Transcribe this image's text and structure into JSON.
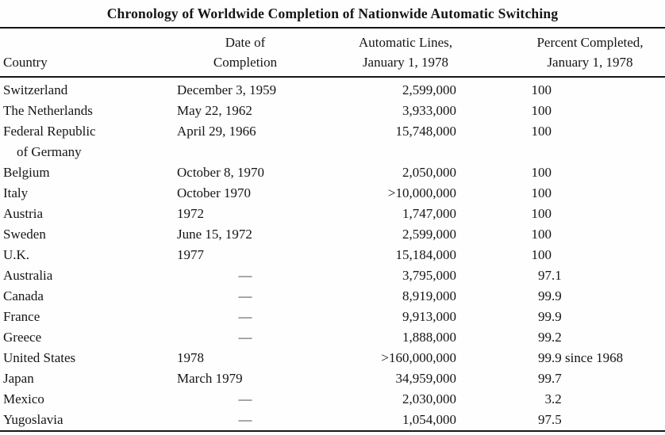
{
  "document": {
    "title": "Chronology of Worldwide Completion of Nationwide Automatic Switching"
  },
  "table": {
    "columns": [
      {
        "id": "country",
        "label": "Country"
      },
      {
        "id": "date",
        "label": "Date of\nCompletion"
      },
      {
        "id": "lines",
        "label": "Automatic Lines,\nJanuary 1, 1978"
      },
      {
        "id": "percent",
        "label": "Percent Completed,\nJanuary 1, 1978"
      }
    ],
    "empty_date_marker": "—",
    "rows": [
      {
        "country": "Switzerland",
        "date": "December 3, 1959",
        "lines": "2,599,000",
        "percent": "100"
      },
      {
        "country": "The Netherlands",
        "date": "May 22, 1962",
        "lines": "3,933,000",
        "percent": "100"
      },
      {
        "country": "Federal Republic\nof Germany",
        "date": "April 29, 1966",
        "lines": "15,748,000",
        "percent": "100"
      },
      {
        "country": "Belgium",
        "date": "October 8, 1970",
        "lines": "2,050,000",
        "percent": "100"
      },
      {
        "country": "Italy",
        "date": "October 1970",
        "lines": ">10,000,000",
        "percent": "100"
      },
      {
        "country": "Austria",
        "date": "1972",
        "lines": "1,747,000",
        "percent": "100"
      },
      {
        "country": "Sweden",
        "date": "June 15, 1972",
        "lines": "2,599,000",
        "percent": "100"
      },
      {
        "country": "U.K.",
        "date": "1977",
        "lines": "15,184,000",
        "percent": "100"
      },
      {
        "country": "Australia",
        "date": "—",
        "lines": "3,795,000",
        "percent": "97.1"
      },
      {
        "country": "Canada",
        "date": "—",
        "lines": "8,919,000",
        "percent": "99.9"
      },
      {
        "country": "France",
        "date": "—",
        "lines": "9,913,000",
        "percent": "99.9"
      },
      {
        "country": "Greece",
        "date": "—",
        "lines": "1,888,000",
        "percent": "99.2"
      },
      {
        "country": "United States",
        "date": "1978",
        "lines": ">160,000,000",
        "percent": "99.9 since 1968"
      },
      {
        "country": "Japan",
        "date": "March 1979",
        "lines": "34,959,000",
        "percent": "99.7"
      },
      {
        "country": "Mexico",
        "date": "—",
        "lines": "2,030,000",
        "percent": "3.2"
      },
      {
        "country": "Yugoslavia",
        "date": "—",
        "lines": "1,054,000",
        "percent": "97.5"
      }
    ]
  },
  "colors": {
    "text": "#151515",
    "background": "#ffffff",
    "rule": "#161616"
  }
}
